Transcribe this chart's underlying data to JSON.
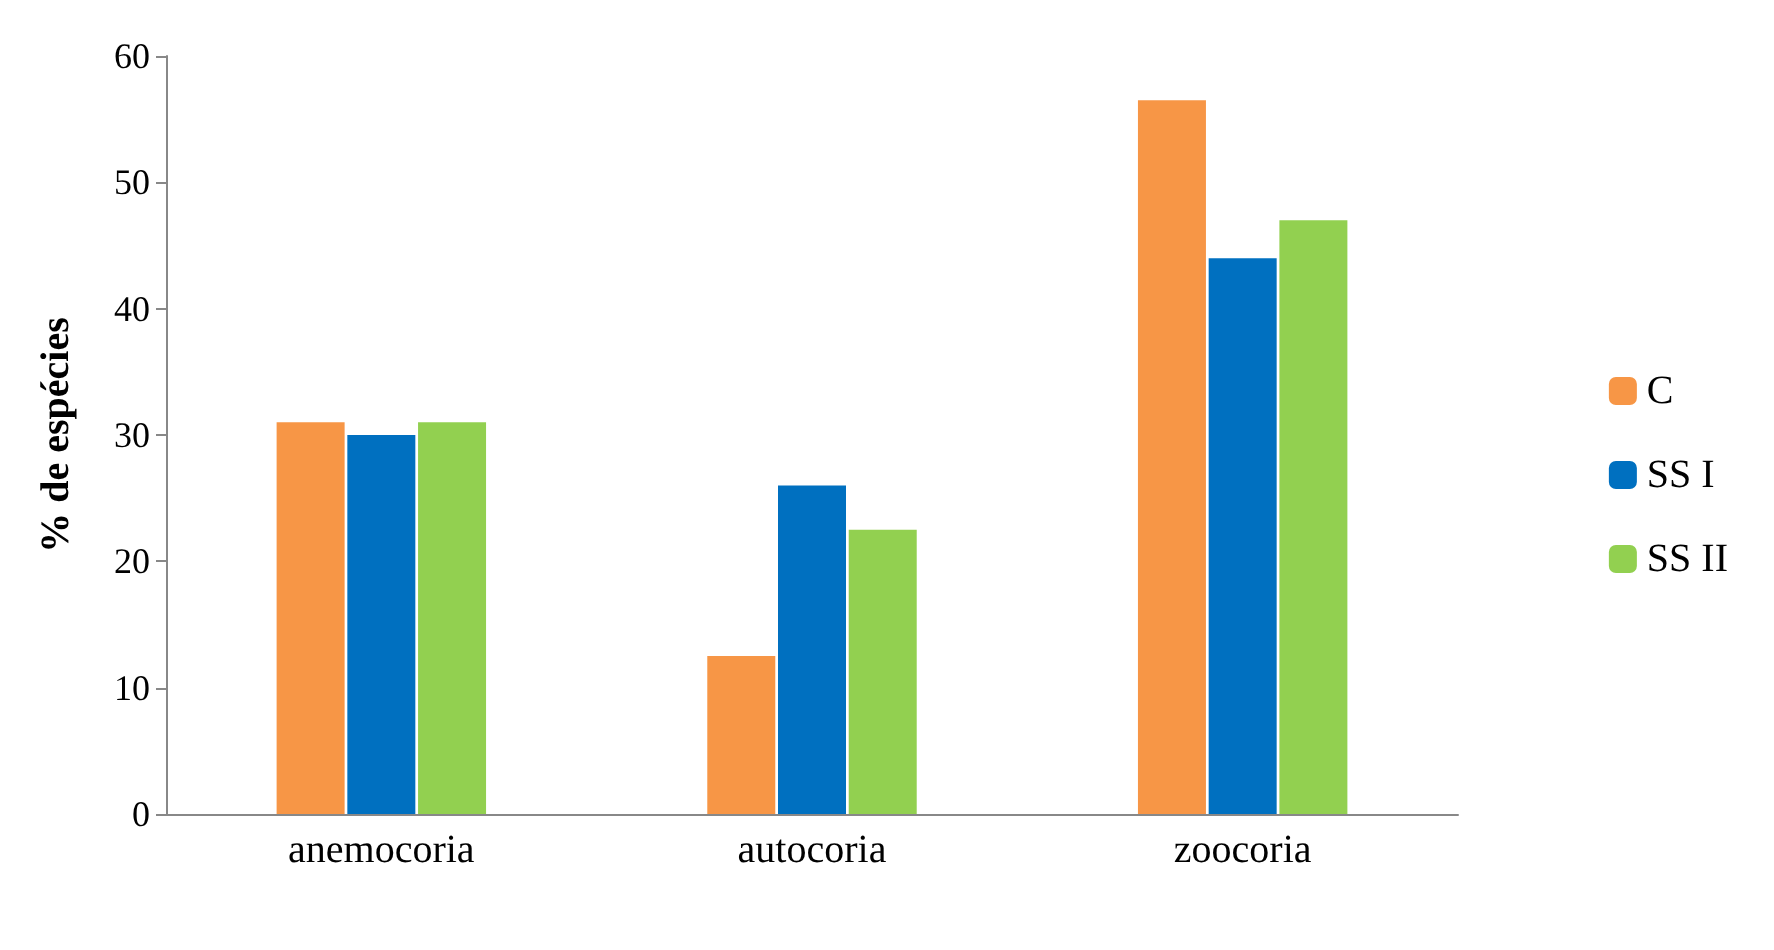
{
  "chart_data": {
    "type": "bar",
    "ylabel": "% de espécies",
    "categories": [
      "anemocoria",
      "autocoria",
      "zoocoria"
    ],
    "series": [
      {
        "name": "C",
        "color": "#f79646",
        "values": [
          31,
          12.5,
          56.5
        ]
      },
      {
        "name": "SS I",
        "color": "#0070c0",
        "values": [
          30,
          26,
          44
        ]
      },
      {
        "name": "SS II",
        "color": "#92d050",
        "values": [
          31,
          22.5,
          47
        ]
      }
    ],
    "ylim": [
      0,
      60
    ],
    "yticks": [
      0,
      10,
      20,
      30,
      40,
      50,
      60
    ],
    "grid": false,
    "legend": "right"
  }
}
